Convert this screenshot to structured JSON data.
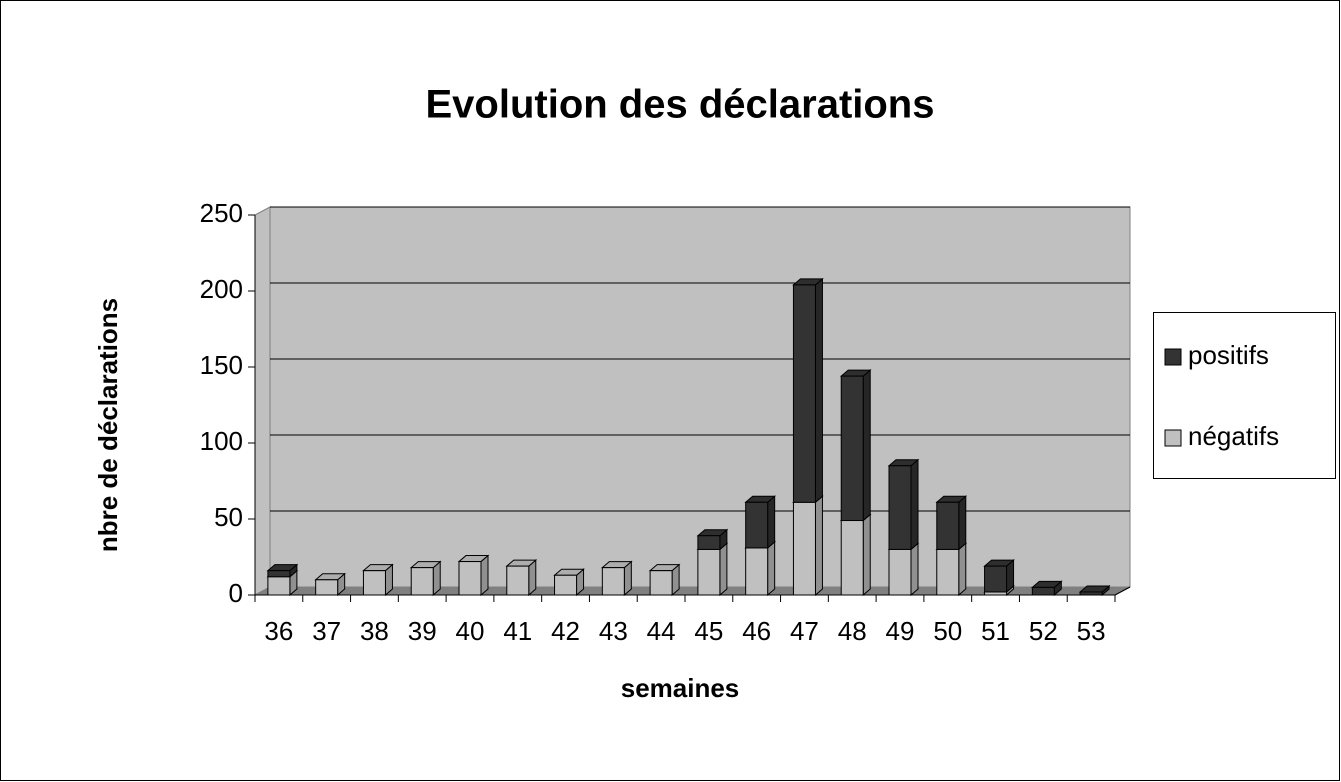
{
  "chart_data": {
    "type": "bar",
    "stacked": true,
    "title": "Evolution des déclarations",
    "xlabel": "semaines",
    "ylabel": "nbre de déclarations",
    "categories": [
      "36",
      "37",
      "38",
      "39",
      "40",
      "41",
      "42",
      "43",
      "44",
      "45",
      "46",
      "47",
      "48",
      "49",
      "50",
      "51",
      "52",
      "53"
    ],
    "series": [
      {
        "name": "négatifs",
        "color": "#c0c0c0",
        "values": [
          12,
          10,
          16,
          18,
          22,
          19,
          13,
          18,
          16,
          30,
          31,
          61,
          49,
          30,
          30,
          2,
          0,
          0
        ]
      },
      {
        "name": "positifs",
        "color": "#333333",
        "values": [
          4,
          0,
          0,
          0,
          0,
          0,
          0,
          0,
          0,
          9,
          30,
          143,
          95,
          55,
          31,
          17,
          5,
          2
        ]
      }
    ],
    "ylim": [
      0,
      250
    ],
    "yticks": [
      0,
      50,
      100,
      150,
      200,
      250
    ],
    "grid": true,
    "legend": "right"
  }
}
